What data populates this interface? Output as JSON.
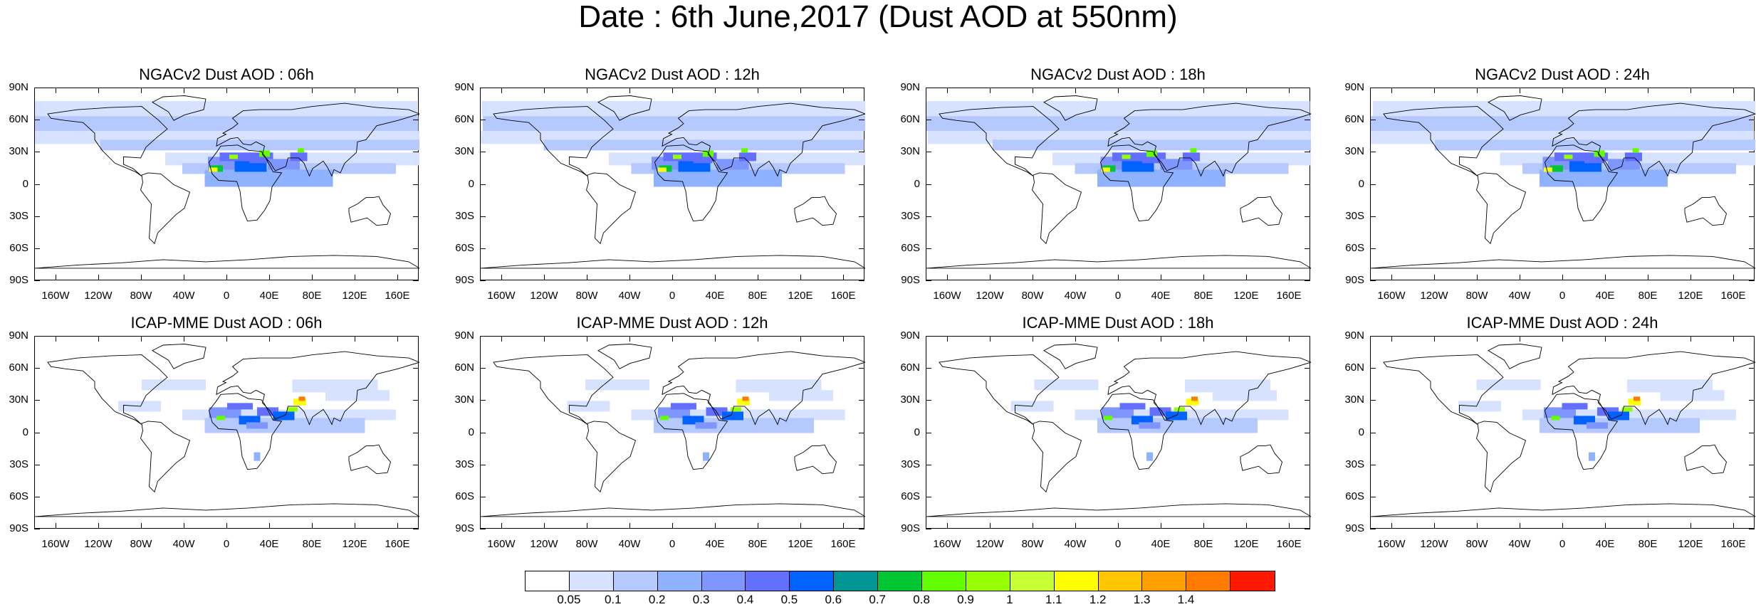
{
  "title": "Date : 6th June,2017 (Dust AOD at 550nm)",
  "panels": [
    {
      "title": "NGACv2 Dust AOD : 06h",
      "model": "NGACv2",
      "lead": "06h"
    },
    {
      "title": "NGACv2 Dust AOD : 12h",
      "model": "NGACv2",
      "lead": "12h"
    },
    {
      "title": "NGACv2 Dust AOD : 18h",
      "model": "NGACv2",
      "lead": "18h"
    },
    {
      "title": "NGACv2 Dust AOD : 24h",
      "model": "NGACv2",
      "lead": "24h"
    },
    {
      "title": "ICAP-MME Dust AOD : 06h",
      "model": "ICAP-MME",
      "lead": "06h"
    },
    {
      "title": "ICAP-MME Dust AOD : 12h",
      "model": "ICAP-MME",
      "lead": "12h"
    },
    {
      "title": "ICAP-MME Dust AOD : 18h",
      "model": "ICAP-MME",
      "lead": "18h"
    },
    {
      "title": "ICAP-MME Dust AOD : 24h",
      "model": "ICAP-MME",
      "lead": "24h"
    }
  ],
  "lat_labels": [
    "90N",
    "60N",
    "30N",
    "0",
    "30S",
    "60S",
    "90S"
  ],
  "lon_labels": [
    "160W",
    "120W",
    "80W",
    "40W",
    "0",
    "40E",
    "80E",
    "120E",
    "160E"
  ],
  "colorbar": {
    "levels": [
      "0.05",
      "0.1",
      "0.2",
      "0.3",
      "0.4",
      "0.5",
      "0.6",
      "0.7",
      "0.8",
      "0.9",
      "1",
      "1.1",
      "1.2",
      "1.3",
      "1.4"
    ],
    "colors": [
      "#ffffff",
      "#d6e2ff",
      "#b5c9ff",
      "#8eb2ff",
      "#7f96ff",
      "#6370ff",
      "#0063ff",
      "#009696",
      "#00c633",
      "#63ff00",
      "#96ff00",
      "#c6ff33",
      "#ffff00",
      "#ffc600",
      "#ffa000",
      "#ff7c00",
      "#ff1900"
    ]
  }
}
